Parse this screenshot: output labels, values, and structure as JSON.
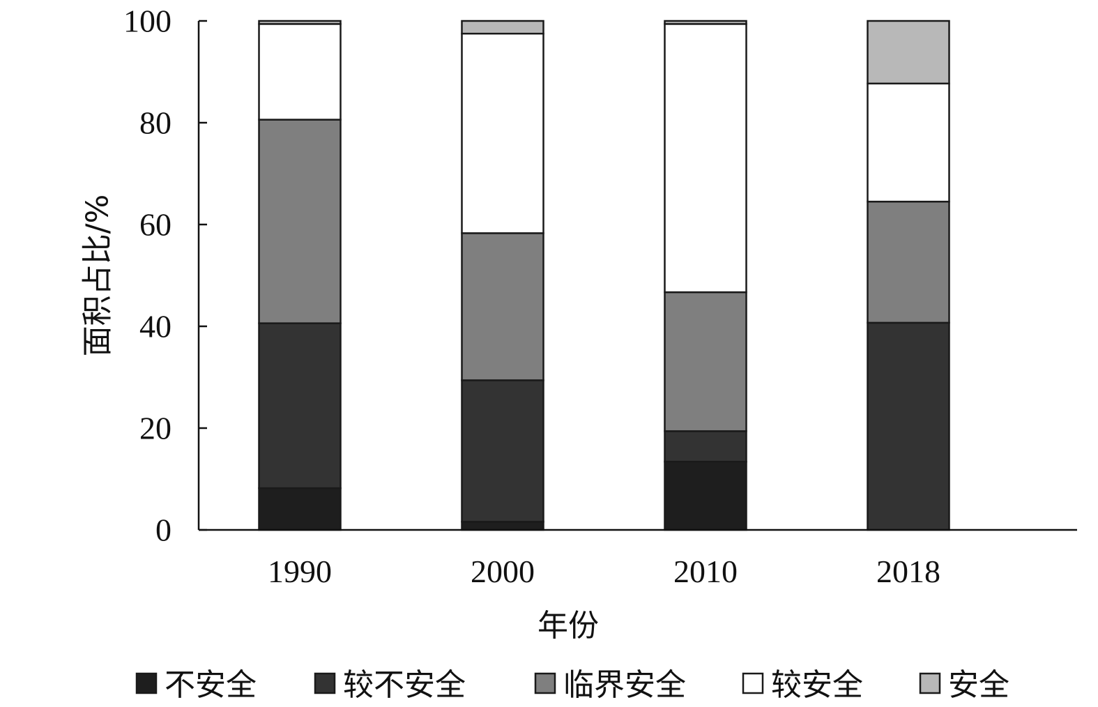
{
  "chart_data": {
    "type": "bar",
    "stacked": true,
    "title": "",
    "xlabel": "年份",
    "ylabel": "面积占比/%",
    "ylim": [
      0,
      100
    ],
    "yticks": [
      0,
      20,
      40,
      60,
      80,
      100
    ],
    "categories": [
      "1990",
      "2000",
      "2010",
      "2018"
    ],
    "series": [
      {
        "name": "不安全",
        "color": "#1e1e1e",
        "values": [
          8.2,
          1.6,
          13.4,
          0
        ]
      },
      {
        "name": "较不安全",
        "color": "#333333",
        "values": [
          32.4,
          27.8,
          6.0,
          40.7
        ]
      },
      {
        "name": "临界安全",
        "color": "#7f7f7f",
        "values": [
          40.0,
          28.9,
          27.3,
          23.8
        ]
      },
      {
        "name": "较安全",
        "color": "#ffffff",
        "values": [
          18.8,
          39.2,
          52.7,
          23.2
        ]
      },
      {
        "name": "安全",
        "color": "#b8b8b8",
        "values": [
          0.6,
          2.5,
          0.6,
          12.3
        ]
      }
    ],
    "grid": false,
    "legend": "bottom"
  }
}
